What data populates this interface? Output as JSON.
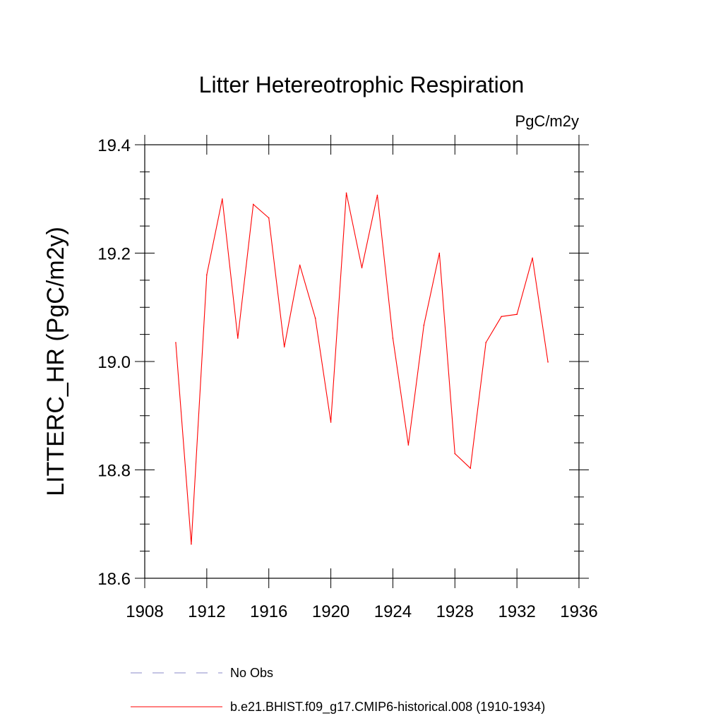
{
  "chart_data": {
    "type": "line",
    "title": "Litter Hetereotrophic Respiration",
    "units": "PgC/m2y",
    "xlabel": "",
    "ylabel": "LITTERC_HR  (PgC/m2y)",
    "xlim": [
      1908,
      1936
    ],
    "ylim": [
      18.6,
      19.4
    ],
    "x_ticks": [
      1908,
      1912,
      1916,
      1920,
      1924,
      1928,
      1932,
      1936
    ],
    "x_tick_labels": [
      "1908",
      "1912",
      "1916",
      "1920",
      "1924",
      "1928",
      "1932",
      "1936"
    ],
    "y_ticks": [
      18.6,
      18.8,
      19.0,
      19.2,
      19.4
    ],
    "y_tick_labels": [
      "18.6",
      "18.8",
      "19.0",
      "19.2",
      "19.4"
    ],
    "series": [
      {
        "name": "b.e21.BHIST.f09_g17.CMIP6-historical.008 (1910-1934)",
        "color": "#ff0000",
        "style": "solid",
        "x": [
          1910,
          1911,
          1912,
          1913,
          1914,
          1915,
          1916,
          1917,
          1918,
          1919,
          1920,
          1921,
          1922,
          1923,
          1924,
          1925,
          1926,
          1927,
          1928,
          1929,
          1930,
          1931,
          1932,
          1933,
          1934
        ],
        "values": [
          19.035,
          18.663,
          19.16,
          19.3,
          19.043,
          19.29,
          19.265,
          19.027,
          19.178,
          19.08,
          18.888,
          19.311,
          19.173,
          19.307,
          19.043,
          18.846,
          19.067,
          19.2,
          18.83,
          18.803,
          19.035,
          19.083,
          19.087,
          19.191,
          18.999
        ]
      }
    ],
    "legend": [
      {
        "label": "No Obs",
        "color": "#8a88c8",
        "style": "dashed"
      },
      {
        "label": "b.e21.BHIST.f09_g17.CMIP6-historical.008 (1910-1934)",
        "color": "#ff0000",
        "style": "solid"
      }
    ],
    "legend_position": "bottom",
    "grid": false
  }
}
